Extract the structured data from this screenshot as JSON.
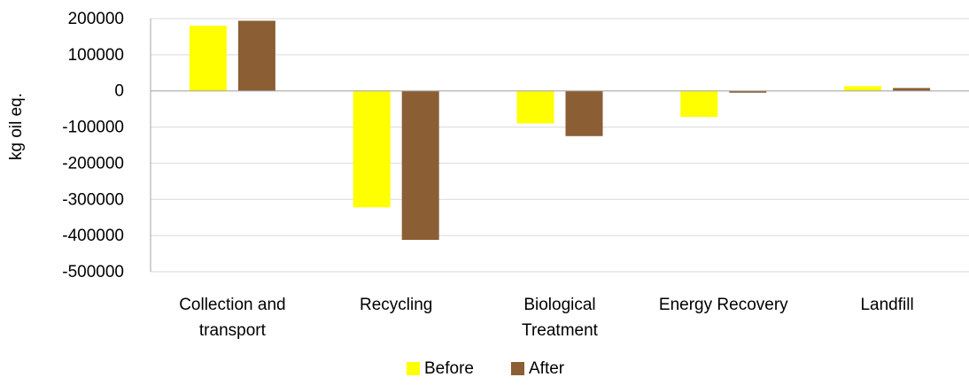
{
  "chart_data": {
    "type": "bar",
    "title": "",
    "xlabel": "",
    "ylabel": "kg oil eq.",
    "categories": [
      [
        "Collection and",
        "transport"
      ],
      [
        "Recycling"
      ],
      [
        "Biological",
        "Treatment"
      ],
      [
        "Energy Recovery"
      ],
      [
        "Landfill"
      ]
    ],
    "series": [
      {
        "name": "Before",
        "color": "#FFFF00",
        "values": [
          180000,
          -322000,
          -90000,
          -72000,
          13000
        ]
      },
      {
        "name": "After",
        "color": "#8B5E34",
        "values": [
          194000,
          -412000,
          -125000,
          -5000,
          8000
        ]
      }
    ],
    "ylim": [
      -500000,
      200000
    ],
    "yticks": [
      200000,
      100000,
      0,
      -100000,
      -200000,
      -300000,
      -400000,
      -500000
    ],
    "ytick_labels": [
      "200000",
      "100000",
      "0",
      "-100000",
      "-200000",
      "-300000",
      "-400000",
      "-500000"
    ],
    "grid": true,
    "legend_position": "bottom"
  }
}
